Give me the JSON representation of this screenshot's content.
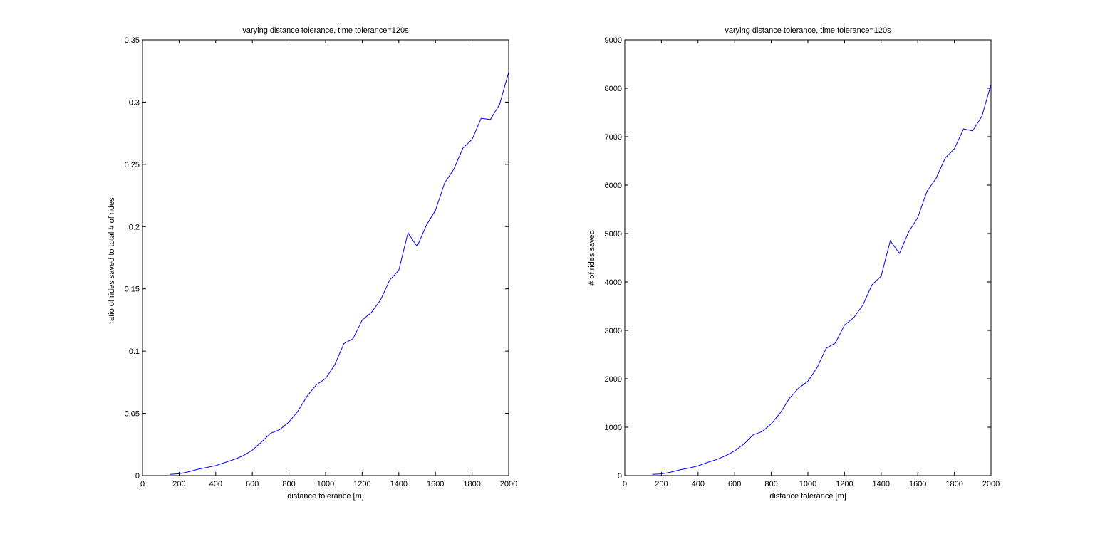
{
  "colors": {
    "background": "#ffffff",
    "axes": "#000000",
    "series": "#0000ff"
  },
  "chart_data": [
    {
      "type": "line",
      "title": "varying distance tolerance, time tolerance=120s",
      "xlabel": "distance tolerance [m]",
      "ylabel": "ratio of rides saved to total # of rides",
      "xlim": [
        0,
        2000
      ],
      "ylim": [
        0,
        0.35
      ],
      "xticks": [
        0,
        200,
        400,
        600,
        800,
        1000,
        1200,
        1400,
        1600,
        1800,
        2000
      ],
      "xtick_labels": [
        "0",
        "200",
        "400",
        "600",
        "800",
        "1000",
        "1200",
        "1400",
        "1600",
        "1800",
        "2000"
      ],
      "yticks": [
        0,
        0.05,
        0.1,
        0.15,
        0.2,
        0.25,
        0.3,
        0.35
      ],
      "ytick_labels": [
        "0",
        "0.05",
        "0.1",
        "0.15",
        "0.2",
        "0.25",
        "0.3",
        "0.35"
      ],
      "grid": false,
      "series": [
        {
          "x": [
            150,
            200,
            250,
            300,
            350,
            400,
            450,
            500,
            550,
            600,
            650,
            700,
            750,
            800,
            850,
            900,
            950,
            1000,
            1050,
            1100,
            1150,
            1200,
            1250,
            1300,
            1350,
            1400,
            1450,
            1500,
            1550,
            1600,
            1650,
            1700,
            1750,
            1800,
            1850,
            1900,
            1950,
            2000
          ],
          "values": [
            0.001,
            0.0015,
            0.003,
            0.005,
            0.0065,
            0.008,
            0.0105,
            0.013,
            0.016,
            0.0205,
            0.027,
            0.034,
            0.037,
            0.043,
            0.052,
            0.064,
            0.073,
            0.078,
            0.089,
            0.106,
            0.11,
            0.125,
            0.131,
            0.141,
            0.157,
            0.165,
            0.195,
            0.184,
            0.201,
            0.213,
            0.235,
            0.246,
            0.263,
            0.27,
            0.287,
            0.286,
            0.298,
            0.324
          ]
        }
      ]
    },
    {
      "type": "line",
      "title": "varying distance tolerance, time tolerance=120s",
      "xlabel": "distance tolerance [m]",
      "ylabel": "# of rides saved",
      "xlim": [
        0,
        2000
      ],
      "ylim": [
        0,
        9000
      ],
      "xticks": [
        0,
        200,
        400,
        600,
        800,
        1000,
        1200,
        1400,
        1600,
        1800,
        2000
      ],
      "xtick_labels": [
        "0",
        "200",
        "400",
        "600",
        "800",
        "1000",
        "1200",
        "1400",
        "1600",
        "1800",
        "2000"
      ],
      "yticks": [
        0,
        1000,
        2000,
        3000,
        4000,
        5000,
        6000,
        7000,
        8000,
        9000
      ],
      "ytick_labels": [
        "0",
        "1000",
        "2000",
        "3000",
        "4000",
        "5000",
        "6000",
        "7000",
        "8000",
        "9000"
      ],
      "grid": false,
      "series": [
        {
          "x": [
            150,
            200,
            250,
            300,
            350,
            400,
            450,
            500,
            550,
            600,
            650,
            700,
            750,
            800,
            850,
            900,
            950,
            1000,
            1050,
            1100,
            1150,
            1200,
            1250,
            1300,
            1350,
            1400,
            1450,
            1500,
            1550,
            1600,
            1650,
            1700,
            1750,
            1800,
            1850,
            1900,
            1950,
            2000
          ],
          "values": [
            25,
            35,
            70,
            120,
            155,
            200,
            270,
            330,
            410,
            510,
            650,
            840,
            910,
            1070,
            1300,
            1600,
            1810,
            1950,
            2230,
            2630,
            2740,
            3110,
            3260,
            3520,
            3940,
            4120,
            4850,
            4590,
            5030,
            5330,
            5870,
            6140,
            6560,
            6750,
            7160,
            7120,
            7420,
            8080
          ]
        }
      ]
    }
  ]
}
